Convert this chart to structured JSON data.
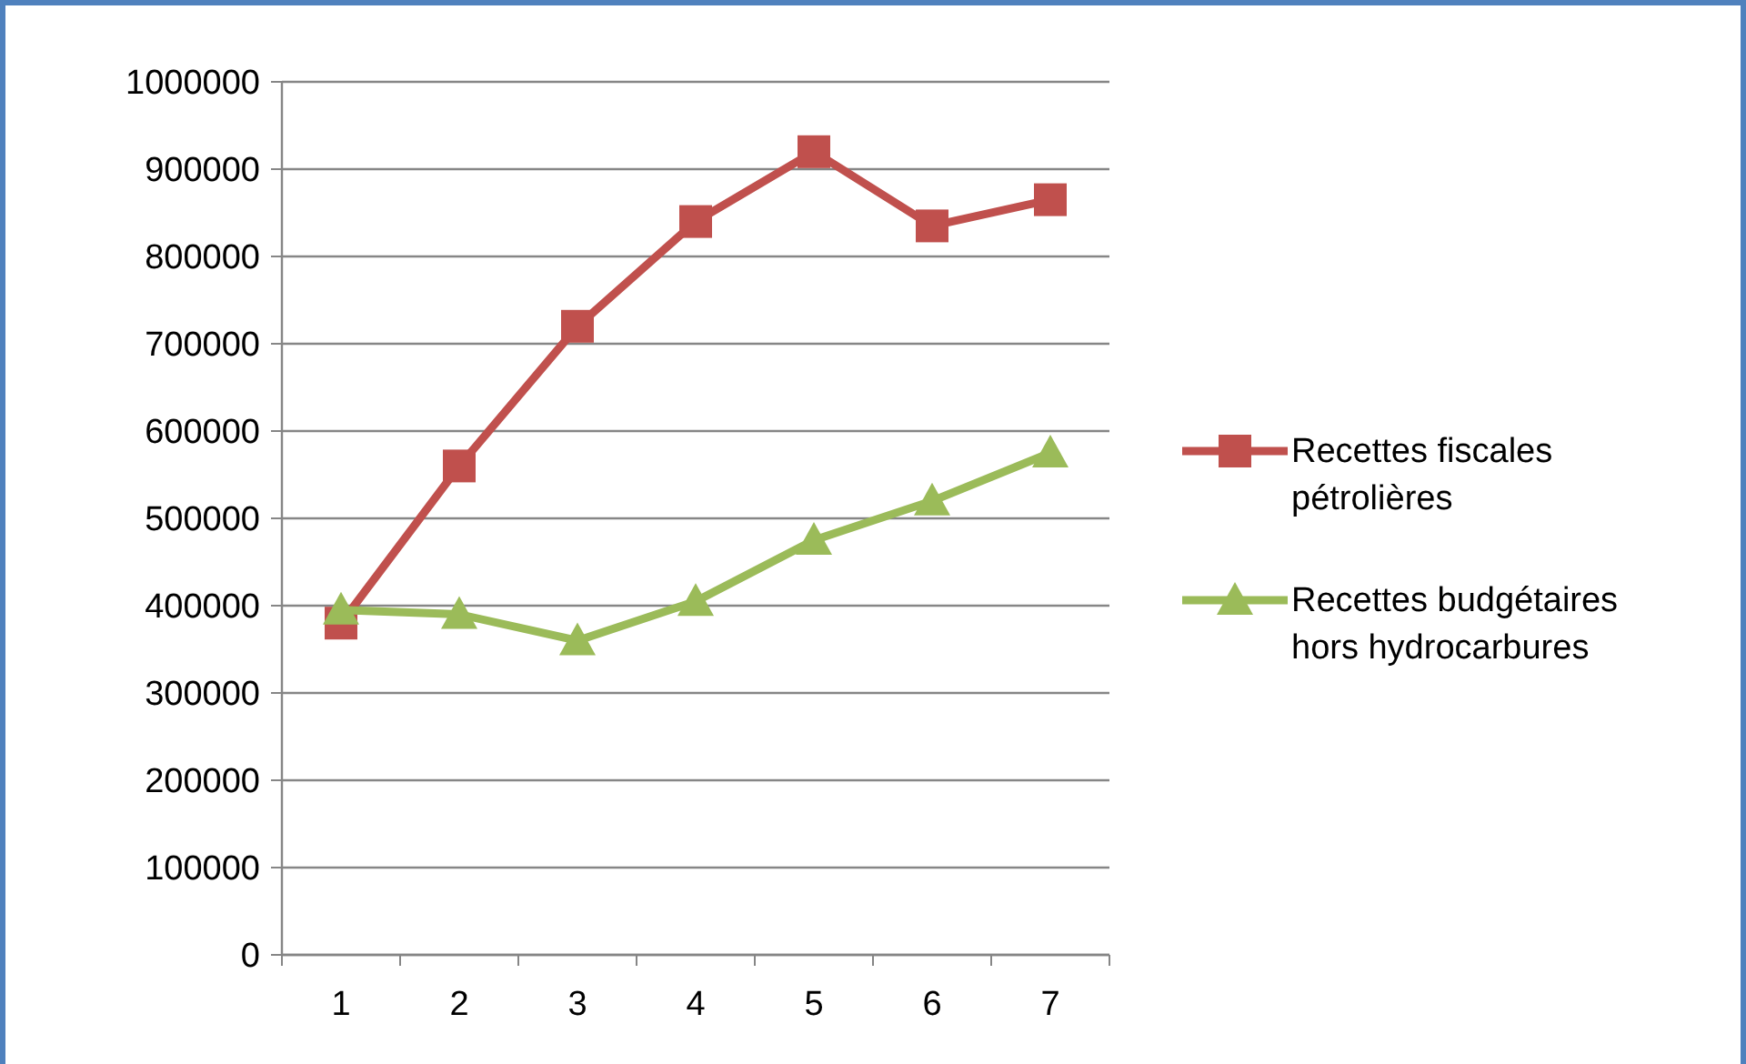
{
  "chart_data": {
    "type": "line",
    "categories": [
      "1",
      "2",
      "3",
      "4",
      "5",
      "6",
      "7"
    ],
    "series": [
      {
        "name": "Recettes fiscales pétrolières",
        "color": "#c0504d",
        "marker": "square",
        "values": [
          380000,
          560000,
          720000,
          840000,
          920000,
          835000,
          865000
        ]
      },
      {
        "name": "Recettes budgétaires hors hydrocarbures",
        "color": "#9bbb59",
        "marker": "triangle",
        "values": [
          395000,
          390000,
          360000,
          405000,
          475000,
          520000,
          575000
        ]
      }
    ],
    "ylim": [
      0,
      1000000
    ],
    "yticks": [
      0,
      100000,
      200000,
      300000,
      400000,
      500000,
      600000,
      700000,
      800000,
      900000,
      1000000
    ],
    "grid": "y",
    "legend": "right",
    "line_style": "solid"
  }
}
